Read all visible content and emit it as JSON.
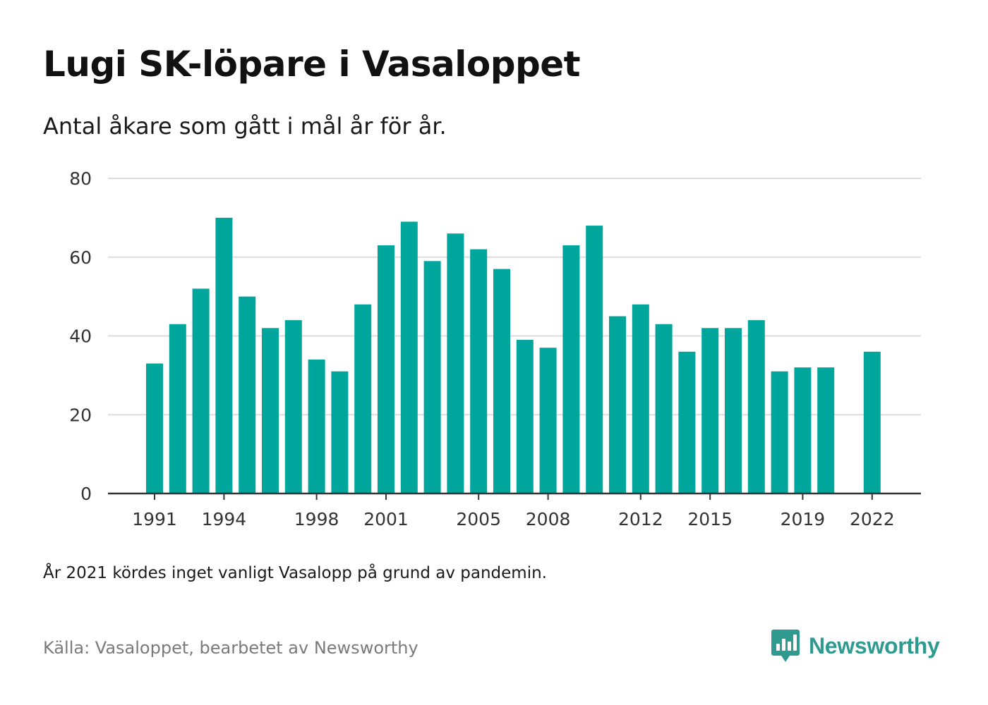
{
  "title": "Lugi SK-löpare i Vasaloppet",
  "subtitle": "Antal åkare som gått i mål år för år.",
  "note": "År 2021 kördes inget vanligt Vasalopp på grund av pandemin.",
  "source": "Källa: Vasaloppet, bearbetet av Newsworthy",
  "logo": {
    "text": "Newsworthy",
    "icon": "newsworthy-logo-icon",
    "color": "#2f9a8f"
  },
  "colors": {
    "bar": "#00a59c",
    "grid": "#dddddd",
    "axis": "#333333"
  },
  "chart_data": {
    "type": "bar",
    "title": "Lugi SK-löpare i Vasaloppet",
    "subtitle": "Antal åkare som gått i mål år för år.",
    "xlabel": "",
    "ylabel": "",
    "ylim": [
      0,
      80
    ],
    "yticks": [
      0,
      20,
      40,
      60,
      80
    ],
    "grid": true,
    "legend": "none",
    "x": [
      1991,
      1992,
      1993,
      1994,
      1995,
      1996,
      1997,
      1998,
      1999,
      2000,
      2001,
      2002,
      2003,
      2004,
      2005,
      2006,
      2007,
      2008,
      2009,
      2010,
      2011,
      2012,
      2013,
      2014,
      2015,
      2016,
      2017,
      2018,
      2019,
      2020,
      2021,
      2022
    ],
    "values": [
      33,
      43,
      52,
      70,
      50,
      42,
      44,
      34,
      31,
      48,
      63,
      69,
      59,
      66,
      62,
      57,
      39,
      37,
      63,
      68,
      45,
      48,
      43,
      36,
      42,
      42,
      44,
      31,
      32,
      32,
      null,
      36
    ],
    "xtick_labels": [
      "1991",
      "1994",
      "1998",
      "2001",
      "2005",
      "2008",
      "2012",
      "2015",
      "2019",
      "2022"
    ]
  }
}
